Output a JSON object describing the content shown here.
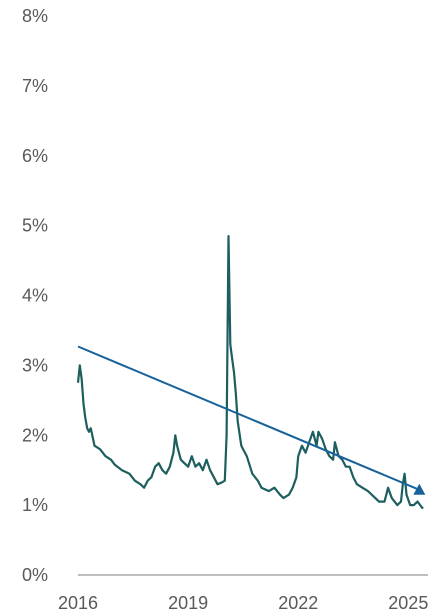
{
  "chart_data": {
    "type": "line",
    "title": "",
    "xlabel": "",
    "ylabel": "",
    "xlim": [
      2016,
      2025.4
    ],
    "ylim": [
      0,
      8
    ],
    "x_ticks": [
      {
        "value": 2016,
        "label": "2016"
      },
      {
        "value": 2019,
        "label": "2019"
      },
      {
        "value": 2022,
        "label": "2022"
      },
      {
        "value": 2025,
        "label": "2025"
      }
    ],
    "y_ticks": [
      {
        "value": 0,
        "label": "0%"
      },
      {
        "value": 1,
        "label": "1%"
      },
      {
        "value": 2,
        "label": "2%"
      },
      {
        "value": 3,
        "label": "3%"
      },
      {
        "value": 4,
        "label": "4%"
      },
      {
        "value": 5,
        "label": "5%"
      },
      {
        "value": 6,
        "label": "6%"
      },
      {
        "value": 7,
        "label": "7%"
      },
      {
        "value": 8,
        "label": "8%"
      }
    ],
    "grid": false,
    "legend": "none",
    "series": [
      {
        "kind": "line",
        "color": "#1d5e5f",
        "points": [
          [
            2016.0,
            2.75
          ],
          [
            2016.05,
            3.0
          ],
          [
            2016.1,
            2.8
          ],
          [
            2016.15,
            2.45
          ],
          [
            2016.2,
            2.25
          ],
          [
            2016.25,
            2.1
          ],
          [
            2016.3,
            2.05
          ],
          [
            2016.35,
            2.1
          ],
          [
            2016.45,
            1.85
          ],
          [
            2016.6,
            1.8
          ],
          [
            2016.75,
            1.7
          ],
          [
            2016.9,
            1.65
          ],
          [
            2017.0,
            1.58
          ],
          [
            2017.2,
            1.5
          ],
          [
            2017.4,
            1.45
          ],
          [
            2017.55,
            1.35
          ],
          [
            2017.7,
            1.3
          ],
          [
            2017.8,
            1.25
          ],
          [
            2017.9,
            1.35
          ],
          [
            2018.0,
            1.4
          ],
          [
            2018.1,
            1.55
          ],
          [
            2018.2,
            1.6
          ],
          [
            2018.3,
            1.5
          ],
          [
            2018.4,
            1.45
          ],
          [
            2018.5,
            1.55
          ],
          [
            2018.6,
            1.75
          ],
          [
            2018.65,
            2.0
          ],
          [
            2018.7,
            1.85
          ],
          [
            2018.8,
            1.65
          ],
          [
            2018.9,
            1.6
          ],
          [
            2019.0,
            1.55
          ],
          [
            2019.1,
            1.7
          ],
          [
            2019.2,
            1.55
          ],
          [
            2019.3,
            1.6
          ],
          [
            2019.4,
            1.5
          ],
          [
            2019.5,
            1.65
          ],
          [
            2019.6,
            1.5
          ],
          [
            2019.7,
            1.4
          ],
          [
            2019.8,
            1.3
          ],
          [
            2019.9,
            1.32
          ],
          [
            2020.0,
            1.35
          ],
          [
            2020.05,
            2.0
          ],
          [
            2020.1,
            4.85
          ],
          [
            2020.15,
            3.3
          ],
          [
            2020.2,
            3.1
          ],
          [
            2020.25,
            2.9
          ],
          [
            2020.3,
            2.6
          ],
          [
            2020.35,
            2.2
          ],
          [
            2020.45,
            1.85
          ],
          [
            2020.6,
            1.7
          ],
          [
            2020.75,
            1.45
          ],
          [
            2020.9,
            1.35
          ],
          [
            2021.0,
            1.25
          ],
          [
            2021.2,
            1.2
          ],
          [
            2021.35,
            1.25
          ],
          [
            2021.5,
            1.15
          ],
          [
            2021.6,
            1.1
          ],
          [
            2021.75,
            1.15
          ],
          [
            2021.85,
            1.25
          ],
          [
            2021.95,
            1.4
          ],
          [
            2022.0,
            1.7
          ],
          [
            2022.1,
            1.85
          ],
          [
            2022.2,
            1.75
          ],
          [
            2022.3,
            1.9
          ],
          [
            2022.4,
            2.05
          ],
          [
            2022.5,
            1.85
          ],
          [
            2022.55,
            2.05
          ],
          [
            2022.65,
            1.95
          ],
          [
            2022.75,
            1.8
          ],
          [
            2022.85,
            1.7
          ],
          [
            2022.95,
            1.65
          ],
          [
            2023.0,
            1.9
          ],
          [
            2023.1,
            1.7
          ],
          [
            2023.2,
            1.65
          ],
          [
            2023.3,
            1.55
          ],
          [
            2023.4,
            1.55
          ],
          [
            2023.5,
            1.4
          ],
          [
            2023.6,
            1.3
          ],
          [
            2023.75,
            1.25
          ],
          [
            2023.9,
            1.2
          ],
          [
            2024.0,
            1.15
          ],
          [
            2024.2,
            1.05
          ],
          [
            2024.35,
            1.05
          ],
          [
            2024.45,
            1.25
          ],
          [
            2024.55,
            1.1
          ],
          [
            2024.7,
            1.0
          ],
          [
            2024.8,
            1.05
          ],
          [
            2024.85,
            1.3
          ],
          [
            2024.9,
            1.45
          ],
          [
            2024.95,
            1.15
          ],
          [
            2025.05,
            1.0
          ],
          [
            2025.15,
            1.0
          ],
          [
            2025.25,
            1.05
          ],
          [
            2025.35,
            0.98
          ],
          [
            2025.4,
            0.95
          ]
        ]
      },
      {
        "kind": "trendline",
        "color": "#17629b",
        "points": [
          [
            2016.0,
            3.27
          ],
          [
            2025.3,
            1.22
          ]
        ]
      }
    ]
  }
}
